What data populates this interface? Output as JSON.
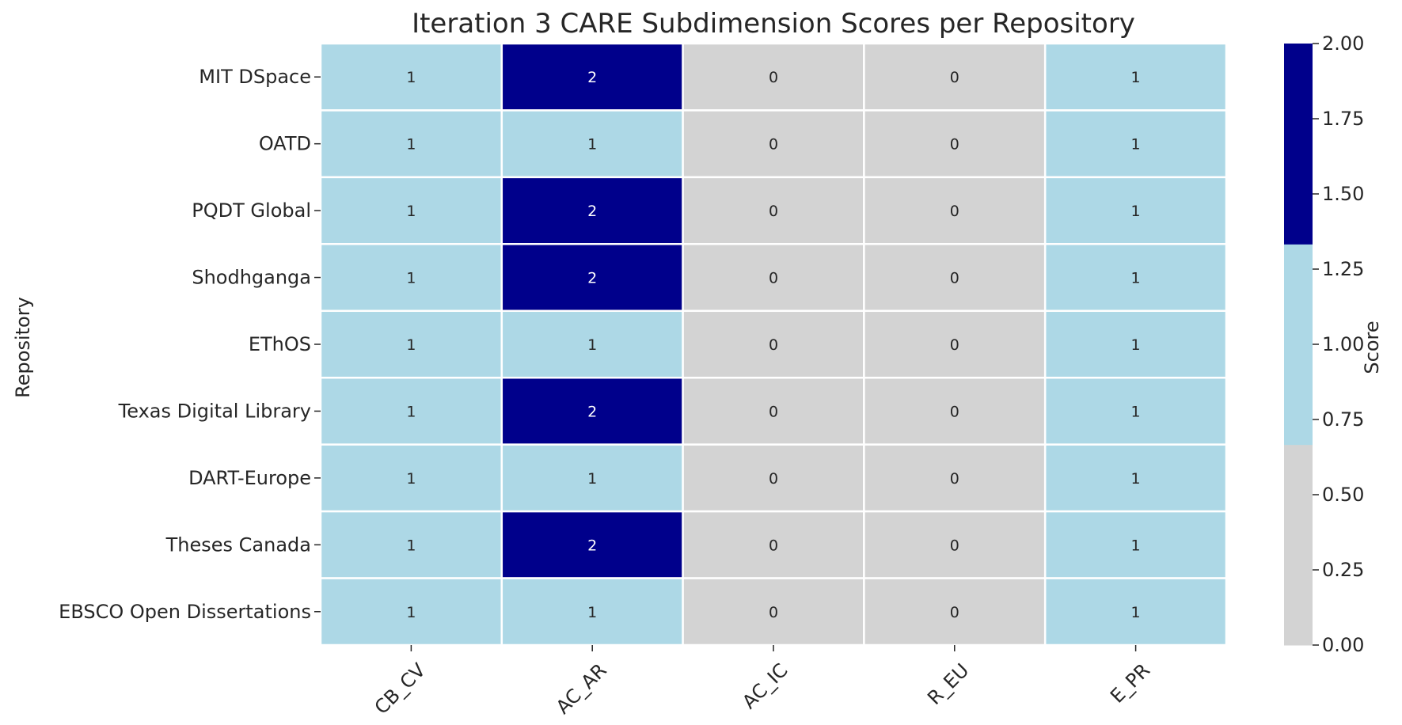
{
  "chart_data": {
    "type": "heatmap",
    "title": "Iteration 3 CARE Subdimension Scores per Repository",
    "ylabel": "Repository",
    "xlabel": "",
    "rows": [
      "MIT DSpace",
      "OATD",
      "PQDT Global",
      "Shodhganga",
      "EThOS",
      "Texas Digital Library",
      "DART-Europe",
      "Theses Canada",
      "EBSCO Open Dissertations"
    ],
    "columns": [
      "CB_CV",
      "AC_AR",
      "AC_IC",
      "R_EU",
      "E_PR"
    ],
    "values": [
      [
        1,
        2,
        0,
        0,
        1
      ],
      [
        1,
        1,
        0,
        0,
        1
      ],
      [
        1,
        2,
        0,
        0,
        1
      ],
      [
        1,
        2,
        0,
        0,
        1
      ],
      [
        1,
        1,
        0,
        0,
        1
      ],
      [
        1,
        2,
        0,
        0,
        1
      ],
      [
        1,
        1,
        0,
        0,
        1
      ],
      [
        1,
        2,
        0,
        0,
        1
      ],
      [
        1,
        1,
        0,
        0,
        1
      ]
    ],
    "colorbar": {
      "label": "Score",
      "range": [
        0,
        2
      ],
      "ticks": [
        "0.00",
        "0.25",
        "0.50",
        "0.75",
        "1.00",
        "1.25",
        "1.50",
        "1.75",
        "2.00"
      ],
      "colors": [
        "#d3d3d3",
        "#add8e6",
        "#00008b"
      ]
    },
    "annotation_colors": {
      "light": "#ffffff",
      "dark": "#262626"
    }
  }
}
